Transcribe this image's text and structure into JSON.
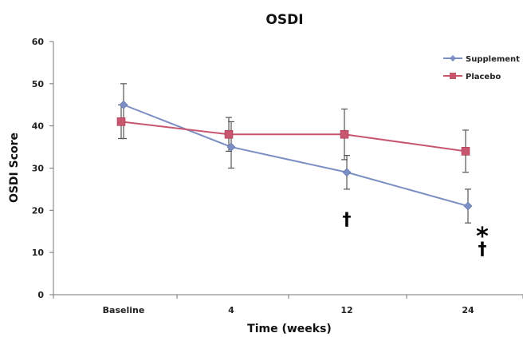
{
  "chart_data": {
    "type": "line",
    "title": "OSDI",
    "xlabel": "Time (weeks)",
    "ylabel": "OSDI Score",
    "categories": [
      "Baseline",
      "4",
      "12",
      "24"
    ],
    "ylim": [
      0,
      60
    ],
    "yticks": [
      0,
      10,
      20,
      30,
      40,
      50,
      60
    ],
    "grid": false,
    "legend_position": "top-right",
    "series": [
      {
        "name": "Supplement",
        "color": "#7b8fc4",
        "marker": "diamond",
        "values": [
          45,
          35,
          29,
          21
        ],
        "error": [
          [
            37,
            50
          ],
          [
            30,
            41
          ],
          [
            25,
            33
          ],
          [
            17,
            25
          ]
        ]
      },
      {
        "name": "Placebo",
        "color": "#c8566e",
        "marker": "square",
        "values": [
          41,
          38,
          38,
          34
        ],
        "error": [
          [
            37,
            45
          ],
          [
            34,
            42
          ],
          [
            32,
            44
          ],
          [
            29,
            39
          ]
        ]
      }
    ],
    "annotations": [
      {
        "text": "†",
        "category": "12",
        "y": 18
      },
      {
        "text": "*",
        "category": "24",
        "y": 15
      },
      {
        "text": "†",
        "category": "24",
        "y": 11
      }
    ]
  }
}
